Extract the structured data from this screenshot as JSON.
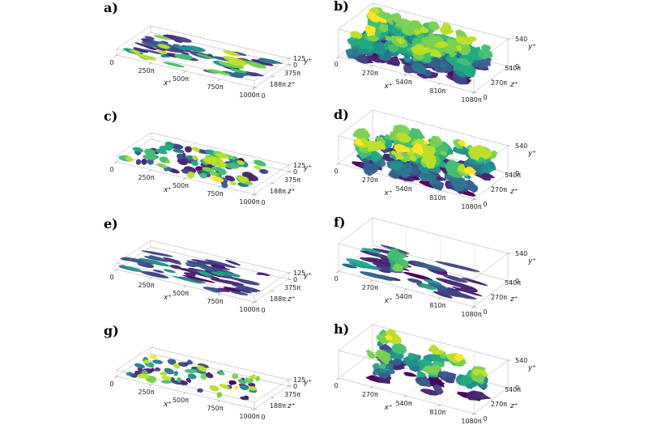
{
  "figure": {
    "background": "#ffffff",
    "colormap_name": "viridis",
    "description": "Eight-panel 3D isosurface figure of near-wall turbulence structures in channel flow, panels a-h, viridis colored by wall-normal height"
  },
  "palette": {
    "viridis": [
      "#440154",
      "#482475",
      "#414487",
      "#355f8d",
      "#2a788e",
      "#21918c",
      "#22a884",
      "#44bf70",
      "#7ad151",
      "#bddf26",
      "#fde725"
    ],
    "wireframe": "#c6c6c6",
    "gridline": "#e0e0e0",
    "tick_color": "#1c1c1c"
  },
  "chart_data": [
    {
      "id": "a",
      "label": "a)",
      "type": "scatter",
      "subtype": "3d-isosurface",
      "x": {
        "label": "x⁺",
        "ticks": [
          "0",
          "250π",
          "500π",
          "750π",
          "1000π"
        ]
      },
      "y": {
        "label": "y⁺",
        "ticks": [
          "0",
          "125"
        ]
      },
      "z": {
        "label": "z⁺",
        "ticks": [
          "0",
          "188π",
          "375π"
        ]
      },
      "description": "flat shallow box; elongated streaks, mix of dark indigo streaks with scattered green/yellow patches",
      "render": {
        "col": "left",
        "style": "streak",
        "n": 62,
        "seed": 3,
        "dark_frac": 0.5,
        "bright_t": [
          0.38,
          0.95
        ],
        "len": [
          10,
          32
        ],
        "th": [
          1.5,
          3.2
        ],
        "max_h": 0.6,
        "rot_jitter": 8
      }
    },
    {
      "id": "b",
      "label": "b)",
      "type": "scatter",
      "subtype": "3d-isosurface",
      "x": {
        "label": "x⁺",
        "ticks": [
          "0",
          "270π",
          "540π",
          "810π",
          "1080π"
        ]
      },
      "y": {
        "label": "y⁺",
        "ticks": [
          "0",
          "540"
        ]
      },
      "z": {
        "label": "z⁺",
        "ticks": [
          "0",
          "270π",
          "540π"
        ]
      },
      "description": "tall box; very dense mushroom-like structures, green/yellow tops over dark purple bases",
      "render": {
        "col": "right",
        "style": "blob",
        "n": 30,
        "seed": 19,
        "lobes": [
          7,
          13
        ],
        "r": [
          4,
          11
        ],
        "max_h": 0.95
      }
    },
    {
      "id": "c",
      "label": "c)",
      "type": "scatter",
      "subtype": "3d-isosurface",
      "x": {
        "label": "x⁺",
        "ticks": [
          "0",
          "250π",
          "500π",
          "750π",
          "1000π"
        ]
      },
      "y": {
        "label": "y⁺",
        "ticks": [
          "0",
          "125"
        ]
      },
      "z": {
        "label": "z⁺",
        "ticks": [
          "0",
          "188π",
          "375π"
        ]
      },
      "description": "flat shallow box; dense short chunky structures, green and teal dominant with dark patches",
      "render": {
        "col": "left",
        "style": "streak",
        "n": 92,
        "seed": 7,
        "dark_frac": 0.38,
        "bright_t": [
          0.4,
          0.97
        ],
        "len": [
          6,
          18
        ],
        "th": [
          2.2,
          4.2
        ],
        "max_h": 0.7,
        "rot_jitter": 14
      }
    },
    {
      "id": "d",
      "label": "d)",
      "type": "scatter",
      "subtype": "3d-isosurface",
      "x": {
        "label": "x⁺",
        "ticks": [
          "0",
          "270π",
          "540π",
          "810π",
          "1080π"
        ]
      },
      "y": {
        "label": "y⁺",
        "ticks": [
          "0",
          "540"
        ]
      },
      "z": {
        "label": "z⁺",
        "ticks": [
          "0",
          "270π",
          "540π"
        ]
      },
      "description": "tall box; dense green/teal structures with yellow crests and purple floor patches",
      "render": {
        "col": "right",
        "style": "blob",
        "n": 26,
        "seed": 23,
        "lobes": [
          6,
          12
        ],
        "r": [
          4,
          11
        ],
        "max_h": 0.9
      }
    },
    {
      "id": "e",
      "label": "e)",
      "type": "scatter",
      "subtype": "3d-isosurface",
      "x": {
        "label": "x⁺",
        "ticks": [
          "0",
          "250π",
          "500π",
          "750π",
          "1000π"
        ]
      },
      "y": {
        "label": "y⁺",
        "ticks": [
          "0",
          "125"
        ]
      },
      "z": {
        "label": "z⁺",
        "ticks": [
          "0",
          "188π",
          "375π"
        ]
      },
      "description": "flat shallow box; sparse long thin dark indigo streaks with occasional small teal caps",
      "render": {
        "col": "left",
        "style": "streak",
        "n": 52,
        "seed": 11,
        "dark_frac": 0.86,
        "bright_t": [
          0.42,
          0.6
        ],
        "len": [
          14,
          44
        ],
        "th": [
          1.3,
          2.4
        ],
        "max_h": 0.35,
        "rot_jitter": 6
      }
    },
    {
      "id": "f",
      "label": "f)",
      "type": "scatter",
      "subtype": "3d-isosurface",
      "x": {
        "label": "x⁺",
        "ticks": [
          "0",
          "270π",
          "540π",
          "810π",
          "1080π"
        ]
      },
      "y": {
        "label": "y⁺",
        "ticks": [
          "0",
          "540"
        ]
      },
      "z": {
        "label": "z⁺",
        "ticks": [
          "0",
          "270π",
          "540π"
        ]
      },
      "description": "tall box; long flat dark purple streaks near floor, one prominent green blob cluster near 540π",
      "render": {
        "col": "right",
        "style": "streak",
        "n": 38,
        "seed": 27,
        "dark_frac": 0.9,
        "bright_t": [
          0.45,
          0.65
        ],
        "len": [
          18,
          58
        ],
        "th": [
          1.6,
          3.0
        ],
        "max_h": 0.18,
        "rot_jitter": 7,
        "cluster": {
          "u": 0.32,
          "v": 0.5,
          "k": 9,
          "t": [
            0.5,
            0.8
          ],
          "r": [
            5,
            10
          ]
        }
      }
    },
    {
      "id": "g",
      "label": "g)",
      "type": "scatter",
      "subtype": "3d-isosurface",
      "x": {
        "label": "x⁺",
        "ticks": [
          "0",
          "250π",
          "500π",
          "750π",
          "1000π"
        ]
      },
      "y": {
        "label": "y⁺",
        "ticks": [
          "0",
          "125"
        ]
      },
      "z": {
        "label": "z⁺",
        "ticks": [
          "0",
          "188π",
          "375π"
        ]
      },
      "description": "flat shallow box; scattered small green/teal/dark fragments at moderate density",
      "render": {
        "col": "left",
        "style": "streak",
        "n": 64,
        "seed": 15,
        "dark_frac": 0.42,
        "bright_t": [
          0.4,
          0.97
        ],
        "len": [
          5,
          16
        ],
        "th": [
          2.0,
          3.6
        ],
        "max_h": 0.6,
        "rot_jitter": 24
      }
    },
    {
      "id": "h",
      "label": "h)",
      "type": "scatter",
      "subtype": "3d-isosurface",
      "x": {
        "label": "x⁺",
        "ticks": [
          "0",
          "270π",
          "540π",
          "810π",
          "1080π"
        ]
      },
      "y": {
        "label": "y⁺",
        "ticks": [
          "0",
          "540"
        ]
      },
      "z": {
        "label": "z⁺",
        "ticks": [
          "0",
          "270π",
          "540π"
        ]
      },
      "description": "tall box; sparse isolated tall clusters with yellow/green tops and purple bases, mostly mid-domain",
      "render": {
        "col": "right",
        "style": "blob",
        "n": 12,
        "seed": 31,
        "lobes": [
          5,
          11
        ],
        "r": [
          4,
          10
        ],
        "max_h": 0.95
      }
    }
  ]
}
